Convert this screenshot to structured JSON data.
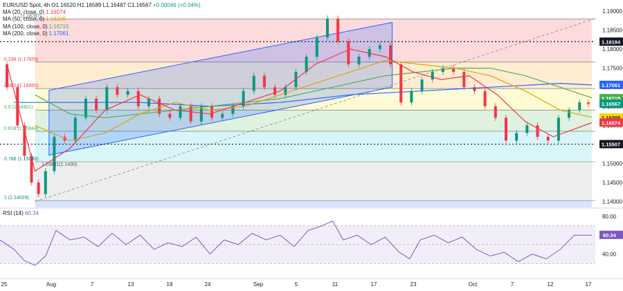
{
  "header": {
    "symbol": "EUR/USD Spot, 4h",
    "open_label": "O",
    "open": "1.16520",
    "high_label": "H",
    "high": "1.16589",
    "low_label": "L",
    "low": "1.16487",
    "close_label": "C",
    "close": "1.16567",
    "change": "+0.00046 (+0.04%)"
  },
  "legend": [
    {
      "label": "MA (20, close, 0)",
      "value": "1.16074",
      "color": "#f23645"
    },
    {
      "label": "MA (50, close, 0)",
      "value": "1.16208",
      "color": "#d4a900"
    },
    {
      "label": "MA (100, close, 0)",
      "value": "1.16715",
      "color": "#4caf50"
    },
    {
      "label": "MA (200, close, 0)",
      "value": "1.17061",
      "color": "#2962ff"
    }
  ],
  "rsi": {
    "label": "RSI (14)",
    "value": "60.34",
    "ticks": [
      "80.00",
      "60.00",
      "40.00"
    ],
    "ylim": [
      20,
      85
    ],
    "levels": [
      70,
      50,
      30
    ]
  },
  "colors": {
    "up": "#089981",
    "down": "#f23645",
    "ma20": "#f23645",
    "ma50": "#d4a900",
    "ma100": "#4caf50",
    "ma200": "#2962ff",
    "channel_fill": "#2962ff",
    "rsi": "#7e57c2"
  },
  "chart_data": {
    "type": "candlestick",
    "ylim": [
      1.3855,
      1.1925
    ],
    "y_ticks": [
      "1.19000",
      "1.18500",
      "1.18000",
      "1.17500",
      "1.17000",
      "1.16500",
      "1.16000",
      "1.15500",
      "1.15000",
      "1.14500",
      "1.14000"
    ],
    "x_ticks": [
      "25",
      "Aug",
      "7",
      "13",
      "19",
      "24",
      "Sep",
      "5",
      "11",
      "17",
      "23",
      "Oct",
      "7",
      "12",
      "17"
    ],
    "price_badges": [
      {
        "value": "1.18194",
        "price": 1.18194,
        "bg": "#131722",
        "fg": "#ffffff"
      },
      {
        "value": "1.17061",
        "price": 1.17061,
        "bg": "#2962ff",
        "fg": "#ffffff"
      },
      {
        "value": "1.16715",
        "price": 1.16715,
        "bg": "#4caf50",
        "fg": "#ffffff"
      },
      {
        "value": "1.16567",
        "price": 1.16567,
        "bg": "#089981",
        "fg": "#ffffff"
      },
      {
        "value": "1.16208",
        "price": 1.16208,
        "bg": "#ffd400",
        "fg": "#131722"
      },
      {
        "value": "1.16074",
        "price": 1.16074,
        "bg": "#f23645",
        "fg": "#ffffff"
      },
      {
        "value": "1.15507",
        "price": 1.15507,
        "bg": "#131722",
        "fg": "#ffffff"
      }
    ],
    "fib_levels": [
      {
        "label": "0.236 (1.17659)",
        "price": 1.17659
      },
      {
        "label": "0.382 (1.16965)",
        "price": 1.16965
      },
      {
        "label": "0.5 (1.16401)",
        "price": 1.16401
      },
      {
        "label": "0.618 (1.15844)",
        "price": 1.15844
      },
      {
        "label": "0.786 (1.15046)",
        "price": 1.15046
      },
      {
        "label": "1 (1.14029)",
        "price": 1.14029
      }
    ],
    "fib_extra_labels": [
      "(1.18787)",
      "1.03831(1.1430)"
    ],
    "dotted_levels": [
      1.18194,
      1.15507
    ],
    "path_points": [
      [
        0,
        1.176
      ],
      [
        4,
        1.17
      ],
      [
        6,
        1.16
      ],
      [
        8,
        1.152
      ],
      [
        10,
        1.145
      ],
      [
        12,
        1.142
      ],
      [
        14,
        1.148
      ],
      [
        17,
        1.157
      ],
      [
        20,
        1.156
      ],
      [
        23,
        1.162
      ],
      [
        26,
        1.167
      ],
      [
        29,
        1.164
      ],
      [
        32,
        1.17
      ],
      [
        35,
        1.168
      ],
      [
        38,
        1.169
      ],
      [
        41,
        1.165
      ],
      [
        44,
        1.167
      ],
      [
        47,
        1.163
      ],
      [
        50,
        1.162
      ],
      [
        53,
        1.165
      ],
      [
        56,
        1.161
      ],
      [
        59,
        1.165
      ],
      [
        62,
        1.162
      ],
      [
        65,
        1.163
      ],
      [
        68,
        1.165
      ],
      [
        71,
        1.169
      ],
      [
        74,
        1.173
      ],
      [
        77,
        1.17
      ],
      [
        80,
        1.168
      ],
      [
        83,
        1.17
      ],
      [
        86,
        1.174
      ],
      [
        89,
        1.178
      ],
      [
        92,
        1.183
      ],
      [
        95,
        1.188
      ],
      [
        98,
        1.182
      ],
      [
        101,
        1.176
      ],
      [
        104,
        1.178
      ],
      [
        107,
        1.18
      ],
      [
        110,
        1.181
      ],
      [
        113,
        1.176
      ],
      [
        116,
        1.166
      ],
      [
        119,
        1.169
      ],
      [
        122,
        1.172
      ],
      [
        125,
        1.174
      ],
      [
        128,
        1.175
      ],
      [
        131,
        1.174
      ],
      [
        134,
        1.17
      ],
      [
        137,
        1.169
      ],
      [
        140,
        1.165
      ],
      [
        143,
        1.162
      ],
      [
        146,
        1.156
      ],
      [
        149,
        1.158
      ],
      [
        152,
        1.16
      ],
      [
        155,
        1.157
      ],
      [
        158,
        1.156
      ],
      [
        161,
        1.162
      ],
      [
        164,
        1.164
      ],
      [
        167,
        1.166
      ],
      [
        169,
        1.1656
      ]
    ],
    "ma20": [
      [
        2,
        1.176
      ],
      [
        10,
        1.148
      ],
      [
        20,
        1.154
      ],
      [
        30,
        1.164
      ],
      [
        40,
        1.168
      ],
      [
        50,
        1.164
      ],
      [
        60,
        1.163
      ],
      [
        70,
        1.166
      ],
      [
        80,
        1.169
      ],
      [
        90,
        1.176
      ],
      [
        100,
        1.18
      ],
      [
        110,
        1.178
      ],
      [
        118,
        1.174
      ],
      [
        126,
        1.172
      ],
      [
        134,
        1.173
      ],
      [
        142,
        1.168
      ],
      [
        150,
        1.161
      ],
      [
        158,
        1.157
      ],
      [
        169,
        1.1607
      ]
    ],
    "ma50": [
      [
        10,
        1.16
      ],
      [
        20,
        1.156
      ],
      [
        30,
        1.158
      ],
      [
        40,
        1.163
      ],
      [
        50,
        1.166
      ],
      [
        60,
        1.164
      ],
      [
        70,
        1.165
      ],
      [
        80,
        1.168
      ],
      [
        90,
        1.171
      ],
      [
        100,
        1.174
      ],
      [
        110,
        1.177
      ],
      [
        120,
        1.176
      ],
      [
        130,
        1.175
      ],
      [
        140,
        1.173
      ],
      [
        150,
        1.169
      ],
      [
        160,
        1.164
      ],
      [
        169,
        1.1621
      ]
    ],
    "ma100": [
      [
        10,
        1.168
      ],
      [
        20,
        1.163
      ],
      [
        30,
        1.162
      ],
      [
        40,
        1.163
      ],
      [
        50,
        1.164
      ],
      [
        60,
        1.165
      ],
      [
        70,
        1.166
      ],
      [
        80,
        1.167
      ],
      [
        90,
        1.169
      ],
      [
        100,
        1.171
      ],
      [
        110,
        1.173
      ],
      [
        120,
        1.174
      ],
      [
        130,
        1.175
      ],
      [
        140,
        1.175
      ],
      [
        150,
        1.173
      ],
      [
        160,
        1.17
      ],
      [
        169,
        1.1672
      ]
    ],
    "ma200": [
      [
        4,
        1.166
      ],
      [
        20,
        1.166
      ],
      [
        40,
        1.166
      ],
      [
        60,
        1.165
      ],
      [
        80,
        1.166
      ],
      [
        100,
        1.168
      ],
      [
        120,
        1.169
      ],
      [
        140,
        1.17
      ],
      [
        160,
        1.171
      ],
      [
        169,
        1.1706
      ]
    ],
    "rsi_path": [
      [
        0,
        55
      ],
      [
        4,
        45
      ],
      [
        7,
        33
      ],
      [
        10,
        28
      ],
      [
        13,
        38
      ],
      [
        16,
        65
      ],
      [
        20,
        55
      ],
      [
        24,
        58
      ],
      [
        28,
        48
      ],
      [
        32,
        62
      ],
      [
        36,
        50
      ],
      [
        40,
        60
      ],
      [
        44,
        45
      ],
      [
        48,
        52
      ],
      [
        52,
        48
      ],
      [
        56,
        58
      ],
      [
        60,
        40
      ],
      [
        64,
        55
      ],
      [
        68,
        50
      ],
      [
        72,
        62
      ],
      [
        76,
        55
      ],
      [
        80,
        60
      ],
      [
        84,
        48
      ],
      [
        88,
        65
      ],
      [
        92,
        70
      ],
      [
        95,
        75
      ],
      [
        98,
        55
      ],
      [
        102,
        60
      ],
      [
        106,
        50
      ],
      [
        110,
        58
      ],
      [
        114,
        42
      ],
      [
        117,
        35
      ],
      [
        120,
        55
      ],
      [
        124,
        60
      ],
      [
        128,
        52
      ],
      [
        132,
        58
      ],
      [
        136,
        45
      ],
      [
        140,
        38
      ],
      [
        144,
        42
      ],
      [
        148,
        32
      ],
      [
        152,
        40
      ],
      [
        156,
        35
      ],
      [
        160,
        45
      ],
      [
        164,
        60
      ],
      [
        169,
        60
      ]
    ]
  }
}
